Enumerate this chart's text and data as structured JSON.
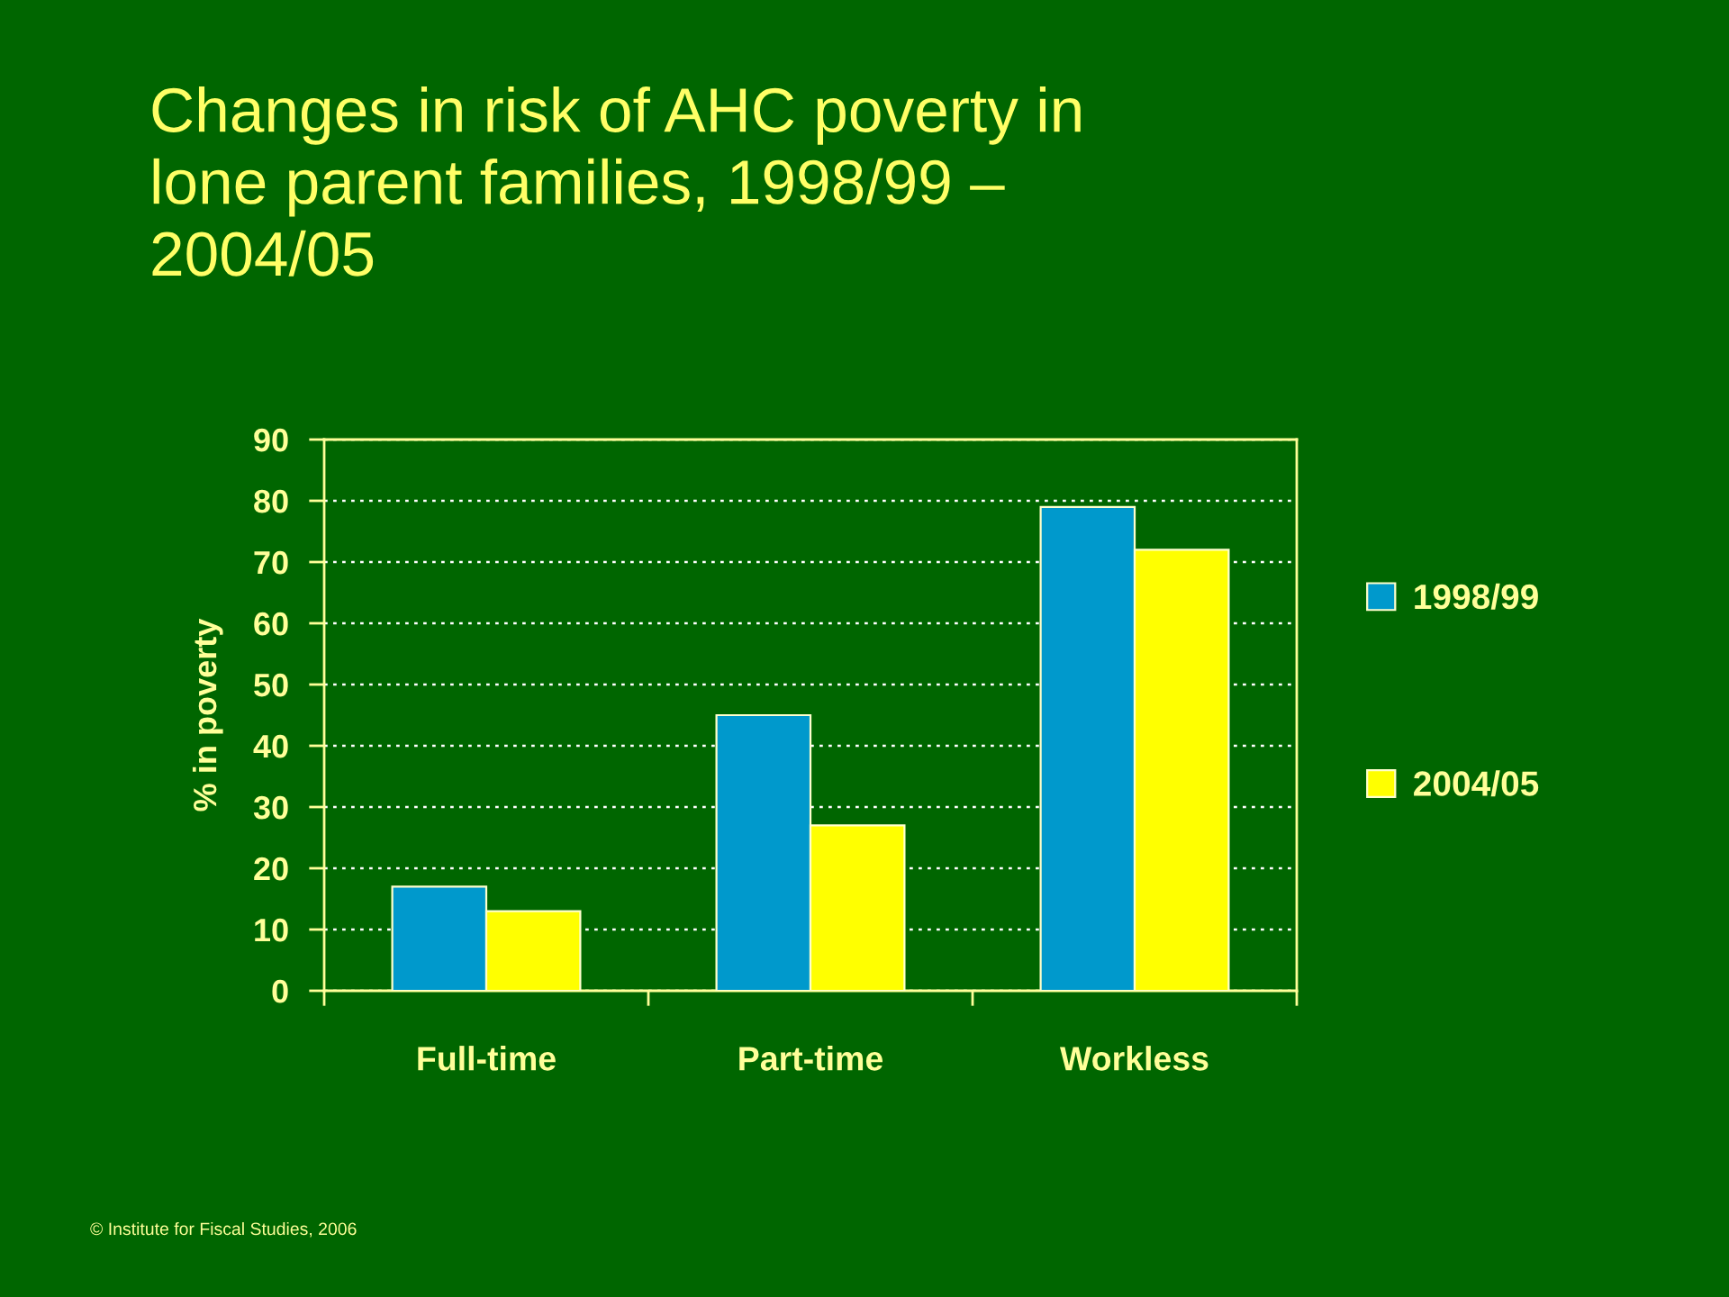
{
  "chart_data": {
    "type": "bar",
    "title": "Changes in risk of AHC poverty in\nlone parent families, 1998/99 –\n2004/05",
    "ylabel": "% in poverty",
    "categories": [
      "Full-time",
      "Part-time",
      "Workless"
    ],
    "series": [
      {
        "name": "1998/99",
        "color": "#0099cc",
        "values": [
          17,
          45,
          79
        ]
      },
      {
        "name": "2004/05",
        "color": "#ffff00",
        "values": [
          13,
          27,
          72
        ]
      }
    ],
    "ylim": [
      0,
      90
    ],
    "yticks": [
      0,
      10,
      20,
      30,
      40,
      50,
      60,
      70,
      80,
      90
    ],
    "grid": "y",
    "legend": "right",
    "annotations": [
      "© Institute for Fiscal Studies, 2006"
    ]
  }
}
